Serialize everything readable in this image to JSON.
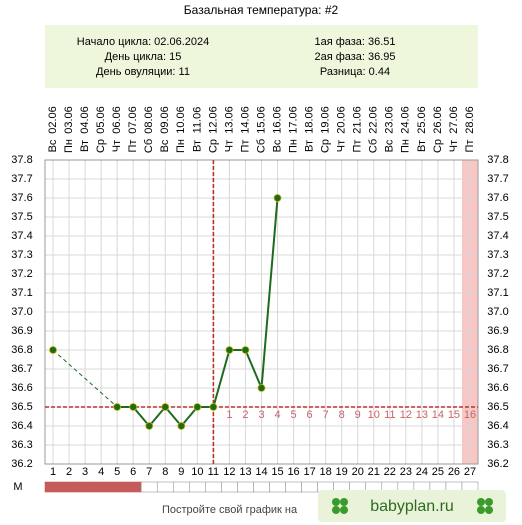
{
  "chart_data": {
    "type": "line",
    "title": "Базальная температура: #2",
    "info_left": [
      "Начало цикла: 02.06.2024",
      "День цикла: 15",
      "День овуляции: 11"
    ],
    "info_right": [
      "1ая фаза: 36.51",
      "2ая фаза: 36.95",
      "Разница: 0.44"
    ],
    "categories": [
      1,
      2,
      3,
      4,
      5,
      6,
      7,
      8,
      9,
      10,
      11,
      12,
      13,
      14,
      15,
      16,
      17,
      18,
      19,
      20,
      21,
      22,
      23,
      24,
      25,
      26,
      27
    ],
    "dates": [
      "02.06",
      "03.06",
      "04.06",
      "05.06",
      "06.06",
      "07.06",
      "08.06",
      "09.06",
      "10.06",
      "11.06",
      "12.06",
      "13.06",
      "14.06",
      "15.06",
      "16.06",
      "17.06",
      "18.06",
      "19.06",
      "20.06",
      "21.06",
      "22.06",
      "23.06",
      "24.06",
      "25.06",
      "26.06",
      "27.06",
      "28.06"
    ],
    "weekdays": [
      "Вс",
      "Пн",
      "Вт",
      "Ср",
      "Чт",
      "Пт",
      "Сб",
      "Вс",
      "Пн",
      "Вт",
      "Ср",
      "Чт",
      "Пт",
      "Сб",
      "Вс",
      "Пн",
      "Вт",
      "Ср",
      "Чт",
      "Пт",
      "Сб",
      "Вс",
      "Пн",
      "Вт",
      "Ср",
      "Чт",
      "Пт"
    ],
    "series": [
      {
        "color": "#1e6b1e",
        "values": [
          36.8,
          null,
          null,
          null,
          36.5,
          36.5,
          36.4,
          36.5,
          36.4,
          36.5,
          36.5,
          36.8,
          36.8,
          36.6,
          37.6,
          null,
          null,
          null,
          null,
          null,
          null,
          null,
          null,
          null,
          null,
          null,
          null
        ]
      }
    ],
    "ylim": [
      36.2,
      37.8
    ],
    "yticks": [
      36.2,
      36.3,
      36.4,
      36.5,
      36.6,
      36.7,
      36.8,
      36.9,
      {
        "value": 37,
        "label": "37.0"
      },
      37.1,
      37.2,
      37.3,
      37.4,
      37.5,
      37.6,
      37.7,
      37.8
    ],
    "coverline": 36.5,
    "ovulation_day": 11,
    "phase_days": [
      1,
      2,
      3,
      4,
      5,
      6,
      7,
      8,
      9,
      10,
      11,
      12,
      13,
      14,
      15,
      16
    ],
    "highlight_day": 27,
    "menstruation_label": "M",
    "menstruation": [
      true,
      true,
      true,
      true,
      true,
      true,
      false,
      false,
      false,
      false,
      false,
      false,
      false,
      false,
      false,
      false,
      false,
      false,
      false,
      false,
      false,
      false,
      false,
      false,
      false,
      false,
      false
    ],
    "footer": "Постройте свой график на",
    "logo": "babyplan.ru",
    "grid": true
  }
}
